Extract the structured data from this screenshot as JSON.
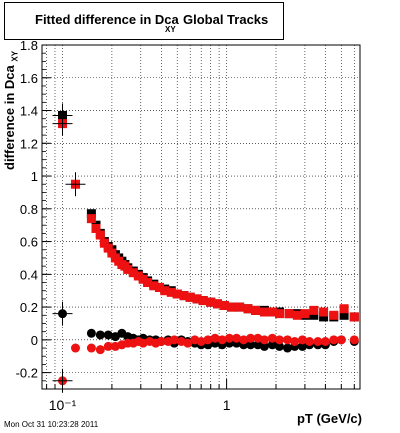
{
  "chart_data": {
    "type": "scatter",
    "title": "Fitted difference in Dca",
    "title_subscript": "XY",
    "title_suffix": "Global Tracks",
    "xlabel": "pT (GeV/c)",
    "ylabel": "difference in Dca",
    "ylabel_subscript": "XY",
    "x_scale": "log",
    "xlim": [
      0.075,
      6.5
    ],
    "ylim": [
      -0.3,
      1.8
    ],
    "x_ticks": [
      {
        "value": 0.1,
        "label": "10⁻¹"
      },
      {
        "value": 1,
        "label": "1"
      }
    ],
    "y_ticks": [
      -0.2,
      0,
      0.2,
      0.4,
      0.6,
      0.8,
      1,
      1.2,
      1.4,
      1.6,
      1.8
    ],
    "y_tick_labels": [
      "-0.2",
      "0",
      "0.2",
      "0.4",
      "0.6",
      "0.8",
      "1",
      "1.2",
      "1.4",
      "1.6",
      "1.8"
    ],
    "grid": true,
    "series": [
      {
        "color": "#000000",
        "marker": "square",
        "x": [
          0.1,
          0.15,
          0.16,
          0.17,
          0.18,
          0.19,
          0.2,
          0.21,
          0.22,
          0.23,
          0.24,
          0.25,
          0.27,
          0.29,
          0.31,
          0.33,
          0.36,
          0.39,
          0.42,
          0.46,
          0.5,
          0.55,
          0.6,
          0.66,
          0.72,
          0.8,
          0.88,
          0.97,
          1.07,
          1.2,
          1.35,
          1.5,
          1.7,
          1.9,
          2.1,
          2.4,
          2.7,
          3.0,
          3.4,
          3.9,
          4.5,
          5.2,
          6.0
        ],
        "y": [
          1.37,
          0.77,
          0.7,
          0.65,
          0.6,
          0.57,
          0.55,
          0.52,
          0.5,
          0.48,
          0.46,
          0.44,
          0.42,
          0.4,
          0.38,
          0.36,
          0.34,
          0.32,
          0.31,
          0.3,
          0.28,
          0.27,
          0.26,
          0.25,
          0.24,
          0.23,
          0.22,
          0.21,
          0.2,
          0.2,
          0.19,
          0.18,
          0.18,
          0.17,
          0.17,
          0.16,
          0.16,
          0.15,
          0.15,
          0.14,
          0.14,
          0.15,
          0.14
        ]
      },
      {
        "color": "#ee1111",
        "marker": "square",
        "x": [
          0.1,
          0.12,
          0.15,
          0.16,
          0.17,
          0.18,
          0.19,
          0.2,
          0.21,
          0.22,
          0.23,
          0.24,
          0.25,
          0.27,
          0.29,
          0.31,
          0.33,
          0.36,
          0.39,
          0.42,
          0.46,
          0.5,
          0.55,
          0.6,
          0.66,
          0.72,
          0.8,
          0.88,
          0.97,
          1.07,
          1.2,
          1.35,
          1.5,
          1.7,
          1.9,
          2.1,
          2.4,
          2.7,
          3.0,
          3.4,
          3.9,
          4.5,
          5.2,
          6.0
        ],
        "y": [
          1.32,
          0.95,
          0.74,
          0.68,
          0.64,
          0.59,
          0.56,
          0.53,
          0.5,
          0.48,
          0.46,
          0.45,
          0.43,
          0.41,
          0.39,
          0.37,
          0.35,
          0.33,
          0.32,
          0.3,
          0.29,
          0.28,
          0.27,
          0.26,
          0.25,
          0.24,
          0.23,
          0.22,
          0.21,
          0.2,
          0.2,
          0.19,
          0.18,
          0.17,
          0.17,
          0.16,
          0.16,
          0.15,
          0.16,
          0.18,
          0.17,
          0.15,
          0.19,
          0.14
        ]
      },
      {
        "color": "#000000",
        "marker": "circle",
        "x": [
          0.1,
          0.15,
          0.17,
          0.19,
          0.21,
          0.23,
          0.25,
          0.27,
          0.29,
          0.31,
          0.34,
          0.37,
          0.4,
          0.44,
          0.48,
          0.53,
          0.58,
          0.64,
          0.7,
          0.77,
          0.85,
          0.94,
          1.04,
          1.15,
          1.27,
          1.4,
          1.55,
          1.7,
          1.9,
          2.1,
          2.35,
          2.6,
          2.9,
          3.2,
          3.6,
          4.0,
          4.5,
          5.0,
          6.0
        ],
        "y": [
          0.16,
          0.04,
          0.03,
          0.03,
          0.02,
          0.04,
          0.02,
          0.01,
          0.0,
          0.01,
          0.0,
          0.0,
          -0.01,
          0.0,
          -0.02,
          0.0,
          -0.01,
          -0.02,
          -0.03,
          -0.03,
          -0.02,
          -0.03,
          -0.02,
          -0.02,
          -0.03,
          -0.03,
          -0.03,
          -0.04,
          -0.03,
          -0.04,
          -0.05,
          -0.04,
          -0.04,
          -0.03,
          -0.03,
          -0.03,
          -0.01,
          0.0,
          -0.01
        ]
      },
      {
        "color": "#ee1111",
        "marker": "circle",
        "x": [
          0.1,
          0.12,
          0.15,
          0.17,
          0.19,
          0.21,
          0.23,
          0.25,
          0.27,
          0.29,
          0.31,
          0.34,
          0.37,
          0.4,
          0.44,
          0.48,
          0.53,
          0.58,
          0.64,
          0.7,
          0.77,
          0.85,
          0.94,
          1.04,
          1.15,
          1.27,
          1.4,
          1.55,
          1.7,
          1.9,
          2.1,
          2.35,
          2.6,
          2.9,
          3.2,
          3.6,
          4.0,
          4.5,
          5.0,
          6.0
        ],
        "y": [
          -0.25,
          -0.05,
          -0.05,
          -0.06,
          -0.04,
          -0.04,
          -0.03,
          -0.02,
          -0.02,
          -0.01,
          -0.02,
          -0.01,
          -0.02,
          -0.01,
          -0.01,
          0.0,
          -0.01,
          -0.02,
          0.0,
          -0.01,
          0.0,
          0.01,
          0.0,
          0.01,
          0.01,
          0.0,
          0.01,
          0.01,
          0.0,
          0.01,
          0.0,
          0.0,
          -0.01,
          0.0,
          -0.01,
          -0.01,
          -0.01,
          0.0,
          0.0,
          0.0
        ]
      }
    ]
  },
  "timestamp": "Mon Oct 31 10:23:28 2011"
}
